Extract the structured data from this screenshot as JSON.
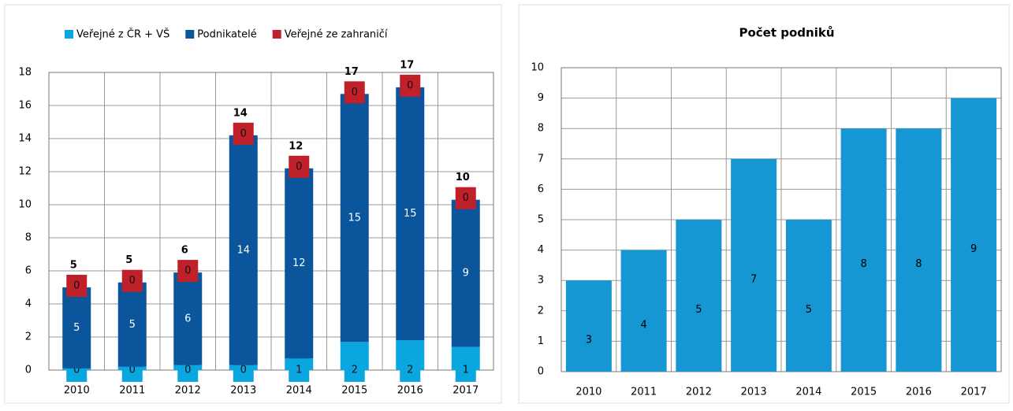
{
  "chart_data": [
    {
      "type": "stacked_bar",
      "categories": [
        "2010",
        "2011",
        "2012",
        "2013",
        "2014",
        "2015",
        "2016",
        "2017"
      ],
      "series": [
        {
          "name": "Veřejné z ČR + VŠ",
          "color": "#0aa6e0",
          "values": [
            0.1,
            0.2,
            0.3,
            0.3,
            0.7,
            1.7,
            1.8,
            1.4
          ],
          "value_labels": [
            "0",
            "0",
            "0",
            "0",
            "1",
            "2",
            "2",
            "1"
          ]
        },
        {
          "name": "Podnikatelé",
          "color": "#0b559c",
          "values": [
            4.9,
            5.1,
            5.6,
            13.9,
            11.5,
            15.0,
            15.3,
            8.9
          ],
          "value_labels": [
            "5",
            "5",
            "6",
            "14",
            "12",
            "15",
            "15",
            "9"
          ]
        },
        {
          "name": "Veřejné ze zahraničí",
          "color": "#c0202a",
          "values": [
            0,
            0,
            0,
            0,
            0,
            0,
            0,
            0
          ]
        }
      ],
      "total_labels": [
        "5",
        "5",
        "6",
        "14",
        "12",
        "17",
        "17",
        "10"
      ],
      "ylim": [
        0,
        18
      ],
      "yticks": [
        0,
        2,
        4,
        6,
        8,
        10,
        12,
        14,
        16,
        18
      ],
      "grid": true,
      "legend": "top"
    },
    {
      "type": "bar",
      "title": "Počet podniků",
      "categories": [
        "2010",
        "2011",
        "2012",
        "2013",
        "2014",
        "2015",
        "2016",
        "2017"
      ],
      "values": [
        3,
        4,
        5,
        7,
        5,
        8,
        8,
        9
      ],
      "color": "#1796d4",
      "ylim": [
        0,
        10
      ],
      "yticks": [
        0,
        1,
        2,
        3,
        4,
        5,
        6,
        7,
        8,
        9,
        10
      ],
      "grid": true
    }
  ]
}
